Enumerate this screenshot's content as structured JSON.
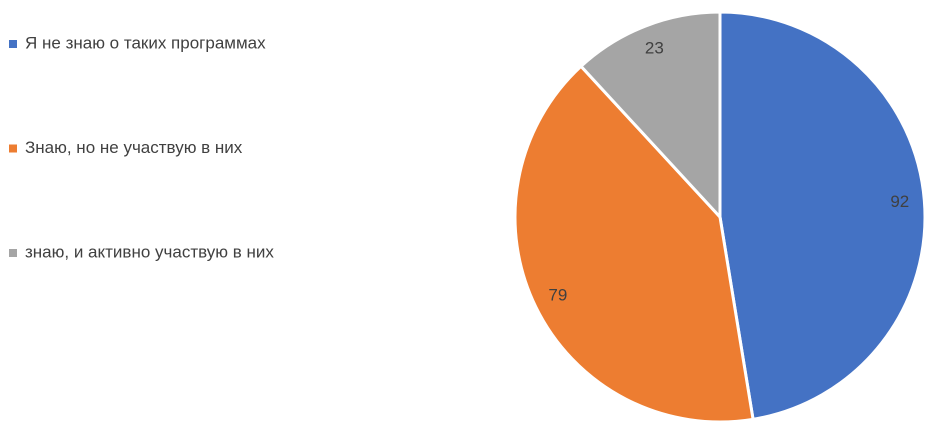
{
  "chart_data": {
    "type": "pie",
    "categories": [
      "Я не знаю о таких программах",
      "Знаю, но не участвую в них",
      "знаю, и активно участвую в них"
    ],
    "values": [
      92,
      79,
      23
    ],
    "colors": [
      "#4472c4",
      "#ed7d31",
      "#a5a5a5"
    ],
    "legend": "left"
  }
}
